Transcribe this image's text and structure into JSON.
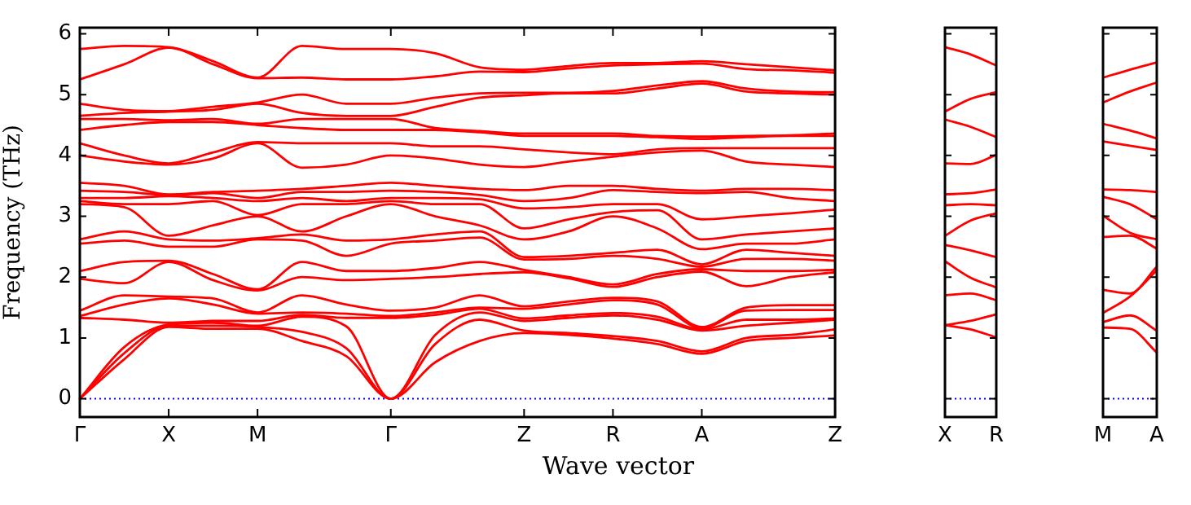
{
  "chart_data": [
    {
      "type": "line",
      "xlabel": "Wave vector",
      "ylabel": "Frequency (THz)",
      "ylim": [
        -0.3,
        6.1
      ],
      "categories": [
        "Γ",
        null,
        "X",
        null,
        "M",
        null,
        null,
        "Γ",
        null,
        null,
        "Z",
        null,
        "R",
        null,
        "A",
        null,
        null,
        "Z"
      ],
      "yticks": [
        0,
        1,
        2,
        3,
        4,
        5,
        6
      ],
      "legend": false,
      "ref_lines": [
        {
          "axis": "y",
          "value": 0,
          "color": "#0000ff",
          "line_style": "dotted"
        }
      ],
      "series": [
        {
          "color": "#ff0000",
          "values": [
            0,
            0.65,
            1.18,
            1.15,
            1.15,
            0.95,
            0.7,
            0,
            0.6,
            0.95,
            1.08,
            1.05,
            0.99,
            0.9,
            0.74,
            0.95,
            1.0,
            1.04
          ]
        },
        {
          "color": "#ff0000",
          "values": [
            0,
            0.75,
            1.2,
            1.2,
            1.18,
            1.1,
            0.83,
            0,
            0.9,
            1.3,
            1.12,
            1.08,
            1.03,
            0.95,
            0.78,
            1.0,
            1.05,
            1.14
          ]
        },
        {
          "color": "#ff0000",
          "values": [
            0,
            0.85,
            1.22,
            1.25,
            1.2,
            1.35,
            1.19,
            0,
            1.05,
            1.42,
            1.28,
            1.33,
            1.37,
            1.3,
            1.12,
            1.2,
            1.25,
            1.3
          ]
        },
        {
          "color": "#ff0000",
          "values": [
            1.33,
            1.3,
            1.25,
            1.28,
            1.28,
            1.38,
            1.33,
            1.33,
            1.38,
            1.48,
            1.32,
            1.37,
            1.41,
            1.35,
            1.14,
            1.3,
            1.3,
            1.32
          ]
        },
        {
          "color": "#ff0000",
          "values": [
            1.36,
            1.55,
            1.65,
            1.55,
            1.4,
            1.42,
            1.4,
            1.36,
            1.42,
            1.5,
            1.48,
            1.55,
            1.62,
            1.55,
            1.16,
            1.45,
            1.46,
            1.46
          ]
        },
        {
          "color": "#ff0000",
          "values": [
            1.45,
            1.7,
            1.68,
            1.65,
            1.42,
            1.7,
            1.55,
            1.45,
            1.5,
            1.7,
            1.52,
            1.6,
            1.66,
            1.6,
            1.18,
            1.5,
            1.54,
            1.54
          ]
        },
        {
          "color": "#ff0000",
          "values": [
            1.97,
            1.9,
            2.25,
            1.95,
            1.78,
            2.0,
            1.95,
            1.97,
            2.0,
            2.05,
            2.08,
            1.98,
            1.84,
            2.0,
            2.09,
            1.85,
            2.0,
            2.08
          ]
        },
        {
          "color": "#ff0000",
          "values": [
            2.1,
            2.25,
            2.27,
            2.05,
            1.8,
            2.25,
            2.1,
            2.1,
            2.15,
            2.25,
            2.12,
            2.0,
            1.88,
            2.05,
            2.13,
            2.1,
            2.1,
            2.12
          ]
        },
        {
          "color": "#ff0000",
          "values": [
            2.55,
            2.6,
            2.5,
            2.5,
            2.62,
            2.6,
            2.35,
            2.55,
            2.6,
            2.65,
            2.29,
            2.3,
            2.35,
            2.3,
            2.17,
            2.3,
            2.3,
            2.27
          ]
        },
        {
          "color": "#ff0000",
          "values": [
            2.62,
            2.75,
            2.62,
            2.6,
            2.64,
            2.7,
            2.6,
            2.62,
            2.7,
            2.75,
            2.33,
            2.35,
            2.4,
            2.45,
            2.21,
            2.45,
            2.4,
            2.35
          ]
        },
        {
          "color": "#ff0000",
          "values": [
            3.2,
            3.15,
            2.68,
            2.85,
            3.0,
            2.75,
            3.0,
            3.2,
            3.0,
            2.85,
            2.62,
            2.75,
            3.0,
            2.8,
            2.46,
            2.55,
            2.55,
            2.62
          ]
        },
        {
          "color": "#ff0000",
          "values": [
            3.25,
            3.2,
            3.2,
            3.25,
            3.02,
            3.2,
            3.2,
            3.25,
            3.2,
            3.2,
            2.8,
            2.95,
            3.07,
            3.1,
            2.62,
            2.7,
            2.75,
            2.8
          ]
        },
        {
          "color": "#ff0000",
          "values": [
            3.3,
            3.3,
            3.33,
            3.3,
            3.25,
            3.3,
            3.25,
            3.3,
            3.3,
            3.28,
            3.13,
            3.15,
            3.2,
            3.2,
            2.95,
            3.0,
            3.05,
            3.11
          ]
        },
        {
          "color": "#ff0000",
          "values": [
            3.42,
            3.4,
            3.35,
            3.38,
            3.3,
            3.4,
            3.4,
            3.42,
            3.4,
            3.35,
            3.25,
            3.3,
            3.43,
            3.4,
            3.38,
            3.4,
            3.3,
            3.25
          ]
        },
        {
          "color": "#ff0000",
          "values": [
            3.55,
            3.5,
            3.36,
            3.4,
            3.42,
            3.45,
            3.5,
            3.55,
            3.5,
            3.45,
            3.43,
            3.5,
            3.5,
            3.45,
            3.42,
            3.45,
            3.45,
            3.43
          ]
        },
        {
          "color": "#ff0000",
          "values": [
            4.0,
            3.9,
            3.85,
            3.95,
            4.2,
            3.8,
            3.85,
            4.0,
            3.95,
            3.85,
            3.81,
            3.9,
            3.98,
            4.05,
            4.08,
            3.9,
            3.85,
            3.81
          ]
        },
        {
          "color": "#ff0000",
          "values": [
            4.2,
            4.0,
            3.87,
            4.05,
            4.22,
            4.2,
            4.2,
            4.2,
            4.15,
            4.15,
            4.1,
            4.05,
            4.02,
            4.1,
            4.12,
            4.12,
            4.12,
            4.12
          ]
        },
        {
          "color": "#ff0000",
          "values": [
            4.42,
            4.5,
            4.55,
            4.55,
            4.5,
            4.45,
            4.42,
            4.42,
            4.42,
            4.38,
            4.32,
            4.32,
            4.32,
            4.3,
            4.27,
            4.3,
            4.32,
            4.32
          ]
        },
        {
          "color": "#ff0000",
          "values": [
            4.6,
            4.6,
            4.58,
            4.6,
            4.52,
            4.6,
            4.6,
            4.6,
            4.45,
            4.4,
            4.36,
            4.36,
            4.36,
            4.32,
            4.31,
            4.32,
            4.33,
            4.36
          ]
        },
        {
          "color": "#ff0000",
          "values": [
            4.65,
            4.7,
            4.72,
            4.75,
            4.85,
            4.7,
            4.65,
            4.65,
            4.8,
            4.95,
            4.99,
            5.02,
            5.02,
            5.1,
            5.18,
            5.05,
            5.02,
            5.0
          ]
        },
        {
          "color": "#ff0000",
          "values": [
            4.85,
            4.75,
            4.73,
            4.8,
            4.87,
            5.0,
            4.85,
            4.85,
            4.95,
            5.02,
            5.03,
            5.03,
            5.06,
            5.15,
            5.22,
            5.1,
            5.05,
            5.04
          ]
        },
        {
          "color": "#ff0000",
          "values": [
            5.25,
            5.5,
            5.77,
            5.5,
            5.27,
            5.28,
            5.25,
            5.25,
            5.3,
            5.38,
            5.37,
            5.43,
            5.48,
            5.5,
            5.51,
            5.42,
            5.4,
            5.36
          ]
        },
        {
          "color": "#ff0000",
          "values": [
            5.75,
            5.8,
            5.78,
            5.55,
            5.28,
            5.8,
            5.75,
            5.75,
            5.68,
            5.45,
            5.41,
            5.47,
            5.52,
            5.52,
            5.55,
            5.5,
            5.45,
            5.4
          ]
        }
      ]
    },
    {
      "type": "line",
      "ylim": [
        -0.3,
        6.1
      ],
      "tick_labels": "x",
      "categories": [
        "X",
        null,
        "R"
      ],
      "yticks": [
        0,
        1,
        2,
        3,
        4,
        5,
        6
      ],
      "legend": false,
      "ref_lines": [
        {
          "axis": "y",
          "value": 0,
          "color": "#0000ff",
          "line_style": "dotted"
        }
      ],
      "series": [
        {
          "color": "#ff0000",
          "values": [
            1.21,
            1.14,
            1.01
          ]
        },
        {
          "color": "#ff0000",
          "values": [
            1.21,
            1.28,
            1.39
          ]
        },
        {
          "color": "#ff0000",
          "values": [
            1.7,
            1.73,
            1.62
          ]
        },
        {
          "color": "#ff0000",
          "values": [
            2.26,
            1.99,
            1.83
          ]
        },
        {
          "color": "#ff0000",
          "values": [
            2.53,
            2.44,
            2.33
          ]
        },
        {
          "color": "#ff0000",
          "values": [
            2.68,
            2.93,
            3.05
          ]
        },
        {
          "color": "#ff0000",
          "values": [
            3.18,
            3.2,
            3.18
          ]
        },
        {
          "color": "#ff0000",
          "values": [
            3.36,
            3.38,
            3.44
          ]
        },
        {
          "color": "#ff0000",
          "values": [
            3.87,
            3.86,
            4.01
          ]
        },
        {
          "color": "#ff0000",
          "values": [
            4.59,
            4.47,
            4.3
          ]
        },
        {
          "color": "#ff0000",
          "values": [
            4.72,
            4.93,
            5.04
          ]
        },
        {
          "color": "#ff0000",
          "values": [
            5.78,
            5.66,
            5.48
          ]
        }
      ]
    },
    {
      "type": "line",
      "ylim": [
        -0.3,
        6.1
      ],
      "tick_labels": "x",
      "categories": [
        "M",
        null,
        "A"
      ],
      "yticks": [
        0,
        1,
        2,
        3,
        4,
        5,
        6
      ],
      "legend": false,
      "ref_lines": [
        {
          "axis": "y",
          "value": 0,
          "color": "#0000ff",
          "line_style": "dotted"
        }
      ],
      "series": [
        {
          "color": "#ff0000",
          "values": [
            1.17,
            1.15,
            0.76
          ]
        },
        {
          "color": "#ff0000",
          "values": [
            1.26,
            1.37,
            1.12
          ]
        },
        {
          "color": "#ff0000",
          "values": [
            1.41,
            1.68,
            2.11
          ]
        },
        {
          "color": "#ff0000",
          "values": [
            1.79,
            1.73,
            2.17
          ]
        },
        {
          "color": "#ff0000",
          "values": [
            2.66,
            2.68,
            2.47
          ]
        },
        {
          "color": "#ff0000",
          "values": [
            3.01,
            2.73,
            2.62
          ]
        },
        {
          "color": "#ff0000",
          "values": [
            3.32,
            3.2,
            2.95
          ]
        },
        {
          "color": "#ff0000",
          "values": [
            3.44,
            3.43,
            3.4
          ]
        },
        {
          "color": "#ff0000",
          "values": [
            4.23,
            4.16,
            4.09
          ]
        },
        {
          "color": "#ff0000",
          "values": [
            4.52,
            4.41,
            4.28
          ]
        },
        {
          "color": "#ff0000",
          "values": [
            4.87,
            5.05,
            5.2
          ]
        },
        {
          "color": "#ff0000",
          "values": [
            5.28,
            5.41,
            5.53
          ]
        }
      ]
    }
  ]
}
